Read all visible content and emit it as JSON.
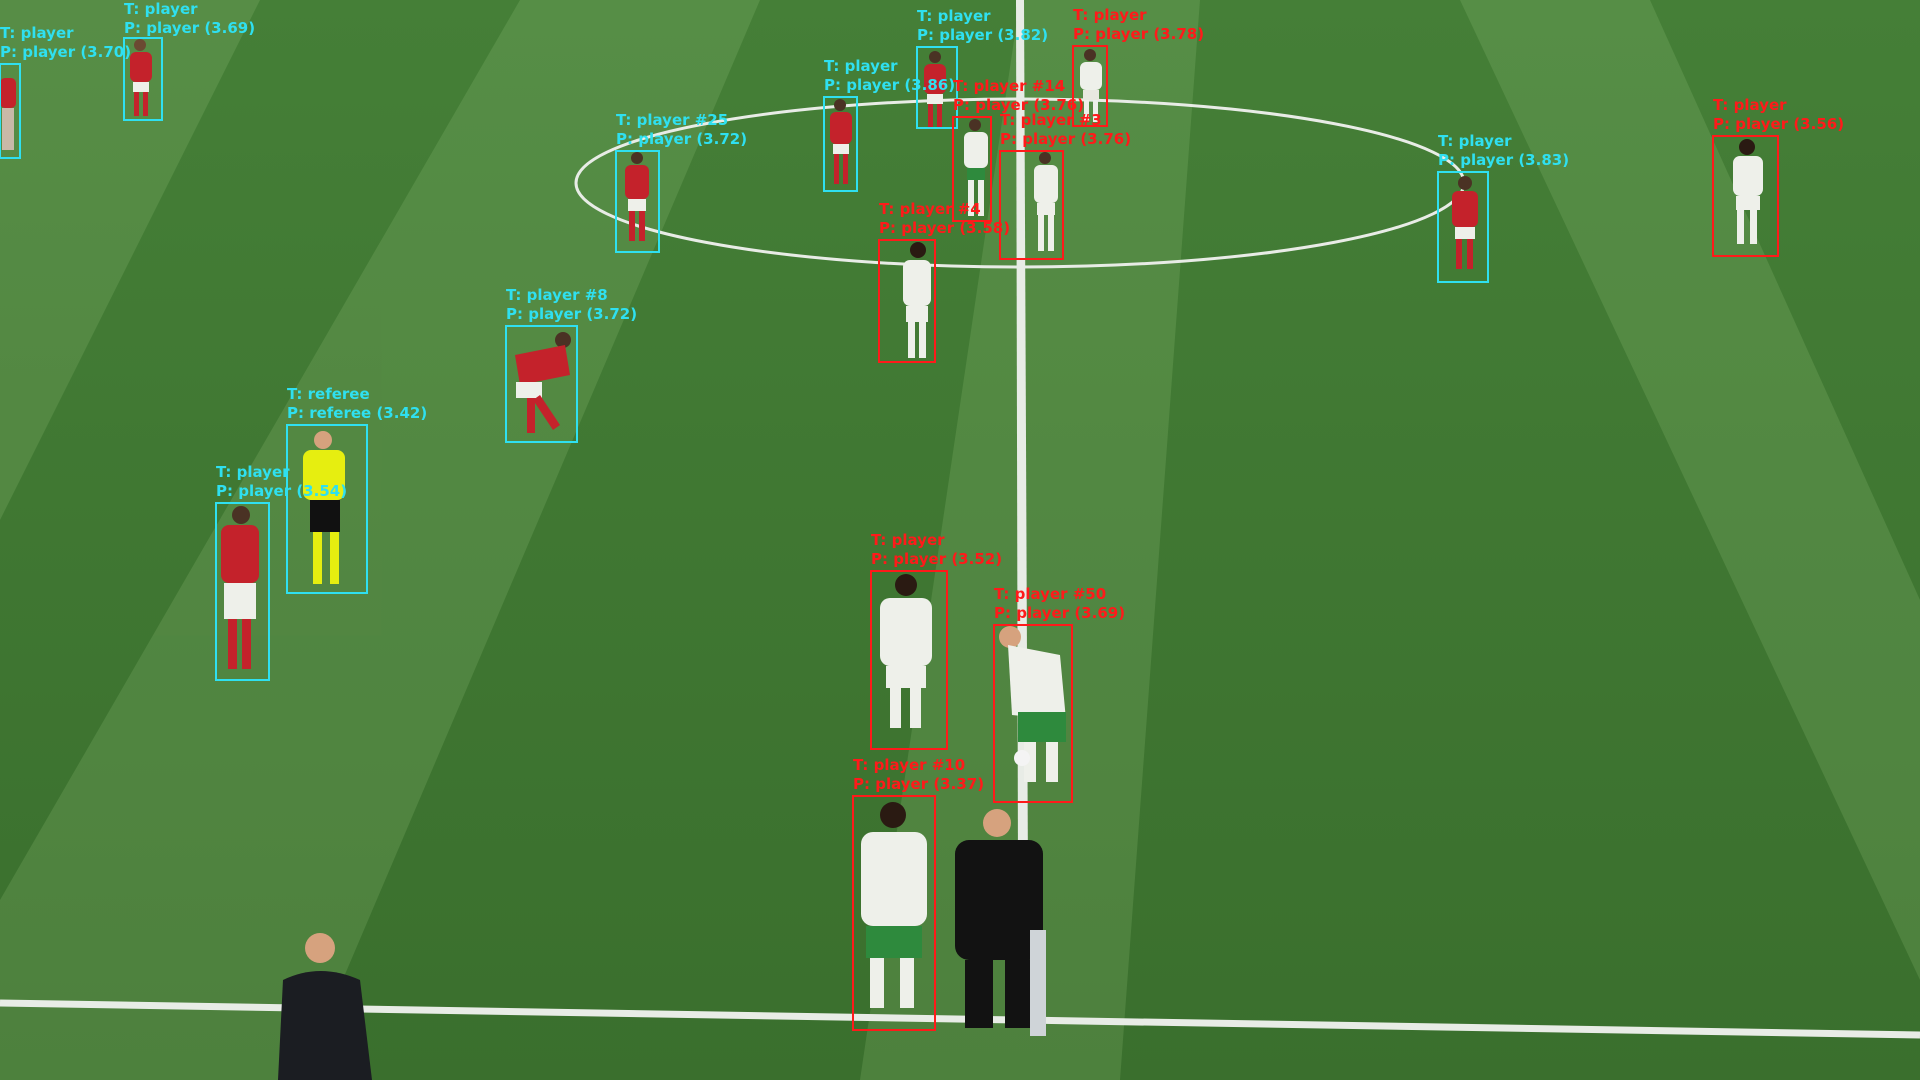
{
  "colors": {
    "grass_light": "#4e8a3d",
    "grass_dark": "#3d7430",
    "pitch_line": "#e8ece6",
    "ground_truth_box": "#2fe0f0",
    "prediction_box": "#ff1a1a",
    "home_kit": "#c4222b",
    "away_kit": "#eef0ea",
    "referee_kit": "#e6ee10"
  },
  "detections": [
    {
      "id": "d1",
      "color": "cyan",
      "t": "T: player",
      "p": "P: player (3.70)"
    },
    {
      "id": "d2",
      "color": "cyan",
      "t": "T: player",
      "p": "P: player (3.69)"
    },
    {
      "id": "d3",
      "color": "cyan",
      "t": "T: player #25",
      "p": "P: player (3.72)"
    },
    {
      "id": "d4",
      "color": "cyan",
      "t": "T: player",
      "p": "P: player (3.86)"
    },
    {
      "id": "d5",
      "color": "cyan",
      "t": "T: player",
      "p": "P: player (3.82)"
    },
    {
      "id": "d6",
      "color": "red",
      "t": "T: player",
      "p": "P: player (3.78)"
    },
    {
      "id": "d7",
      "color": "red",
      "t": "T: player #14",
      "p": "P: player (3.76)"
    },
    {
      "id": "d8",
      "color": "red",
      "t": "T: player #3",
      "p": "P: player (3.76)"
    },
    {
      "id": "d9",
      "color": "red",
      "t": "T: player #4",
      "p": "P: player (3.58)"
    },
    {
      "id": "d10",
      "color": "cyan",
      "t": "T: player",
      "p": "P: player (3.83)"
    },
    {
      "id": "d11",
      "color": "red",
      "t": "T: player",
      "p": "P: player (3.56)"
    },
    {
      "id": "d12",
      "color": "cyan",
      "t": "T: player #8",
      "p": "P: player (3.72)"
    },
    {
      "id": "d13",
      "color": "cyan",
      "t": "T: referee",
      "p": "P: referee (3.42)"
    },
    {
      "id": "d14",
      "color": "cyan",
      "t": "T: player",
      "p": "P: player (3.54)"
    },
    {
      "id": "d15",
      "color": "red",
      "t": "T: player",
      "p": "P: player (3.52)"
    },
    {
      "id": "d16",
      "color": "red",
      "t": "T: player #50",
      "p": "P: player (3.69)"
    },
    {
      "id": "d17",
      "color": "red",
      "t": "T: player #10",
      "p": "P: player (3.37)"
    }
  ]
}
